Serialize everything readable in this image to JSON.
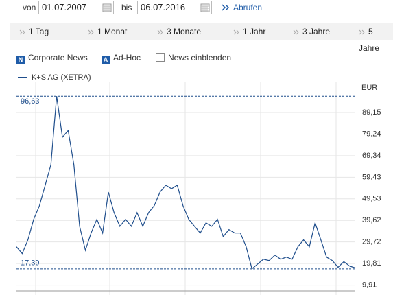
{
  "controls": {
    "from_label": "von",
    "from_date": "01.07.2007",
    "to_label": "bis",
    "to_date": "06.07.2016",
    "submit": "Abrufen"
  },
  "tabs": [
    "1 Tag",
    "1 Monat",
    "3 Monate",
    "1 Jahr",
    "3 Jahre",
    "5 Jahre"
  ],
  "filters": [
    {
      "icon": "N",
      "label": "Corporate News"
    },
    {
      "icon": "A",
      "label": "Ad-Hoc"
    },
    {
      "label": "News einblenden"
    }
  ],
  "chart_data": {
    "type": "line",
    "y_axis_label": "EUR",
    "series": [
      {
        "name": "K+S AG (XETRA)",
        "color": "#1f4e8c",
        "values": [
          27.5,
          24.4,
          30.7,
          40.1,
          46.4,
          55.8,
          65.2,
          96.63,
          77.8,
          80.9,
          65.2,
          36.9,
          25.9,
          33.8,
          40.1,
          33.8,
          52.6,
          43.2,
          36.9,
          40.1,
          36.9,
          43.2,
          36.9,
          43.2,
          46.4,
          52.6,
          55.8,
          54.2,
          55.8,
          46.4,
          40.1,
          36.9,
          33.8,
          38.5,
          36.9,
          40.1,
          32.2,
          35.4,
          33.8,
          33.8,
          27.5,
          17.39,
          19.6,
          21.8,
          21.2,
          23.7,
          21.8,
          22.8,
          21.8,
          27.5,
          30.7,
          27.5,
          38.5,
          30.7,
          22.8,
          21.2,
          18.1,
          20.7,
          18.7,
          17.8
        ]
      }
    ],
    "ylim": [
      6,
      103
    ],
    "yticks": [
      {
        "value": 9.91,
        "label": "9,91"
      },
      {
        "value": 19.81,
        "label": "19,81"
      },
      {
        "value": 29.72,
        "label": "29,72"
      },
      {
        "value": 39.62,
        "label": "39,62"
      },
      {
        "value": 49.53,
        "label": "49,53"
      },
      {
        "value": 59.43,
        "label": "59,43"
      },
      {
        "value": 69.34,
        "label": "69,34"
      },
      {
        "value": 79.24,
        "label": "79,24"
      },
      {
        "value": 89.15,
        "label": "89,15"
      }
    ],
    "annotations": [
      {
        "value": 96.63,
        "label": "96,63"
      },
      {
        "value": 17.39,
        "label": "17,39"
      }
    ],
    "grid": true
  }
}
